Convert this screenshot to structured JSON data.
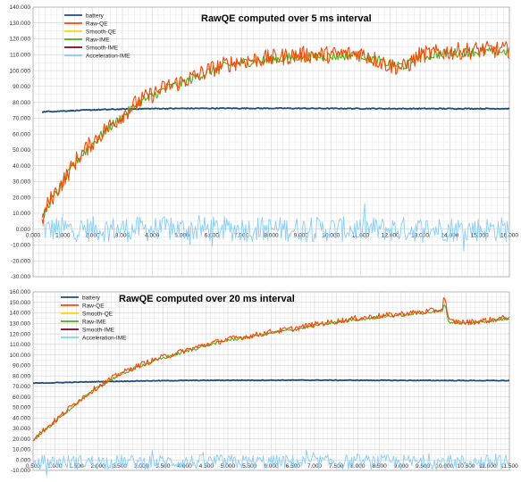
{
  "chart_data": [
    {
      "type": "line",
      "title": "RawQE computed over 5 ms interval",
      "xlabel": "",
      "ylabel": "",
      "xlim": [
        0,
        16000
      ],
      "ylim": [
        -30000,
        140000
      ],
      "x_ticks": [
        "0.000",
        "1.000",
        "2.000",
        "3.000",
        "4.000",
        "5.000",
        "6.000",
        "7.000",
        "8.000",
        "9.000",
        "10.000",
        "11.000",
        "12.000",
        "13.000",
        "14.000",
        "15.000",
        "16.000"
      ],
      "y_ticks": [
        "140.000",
        "130.000",
        "120.000",
        "110.000",
        "100.000",
        "90.000",
        "80.000",
        "70.000",
        "60.000",
        "50.000",
        "40.000",
        "30.000",
        "20.000",
        "10.000",
        "0.000",
        "-10.000",
        "-20.000",
        "-30.000"
      ],
      "grid": true,
      "legend_position": "top-left",
      "legend": [
        {
          "name": "battery",
          "color": "#1f4e79"
        },
        {
          "name": "Raw-QE",
          "color": "#ff4500"
        },
        {
          "name": "Smooth-QE",
          "color": "#ffd700"
        },
        {
          "name": "Raw-IME",
          "color": "#4caf1e"
        },
        {
          "name": "Smooth-IME",
          "color": "#800020"
        },
        {
          "name": "Acceleration-IME",
          "color": "#87cefa"
        }
      ],
      "series": [
        {
          "name": "battery",
          "color": "#1f4e79",
          "x": [
            300,
            1000,
            2000,
            3000,
            4000,
            6000,
            8000,
            10000,
            12000,
            14000,
            16000
          ],
          "y": [
            74000,
            74500,
            75200,
            75700,
            76000,
            76200,
            76200,
            76100,
            76000,
            76000,
            76000
          ]
        },
        {
          "name": "Raw-QE",
          "color": "#ff4500",
          "x": [
            300,
            500,
            1000,
            1500,
            2000,
            2500,
            3000,
            3500,
            4000,
            4500,
            5000,
            5500,
            6000,
            6500,
            7000,
            8000,
            9000,
            10000,
            11000,
            12000,
            12500,
            13000,
            14000,
            15000,
            16000
          ],
          "y": [
            5000,
            16000,
            30000,
            45000,
            55000,
            64000,
            72000,
            80000,
            85000,
            90000,
            93000,
            97000,
            101000,
            104000,
            106000,
            108000,
            110000,
            110000,
            111000,
            103000,
            102000,
            110000,
            112000,
            113000,
            113000
          ]
        },
        {
          "name": "Raw-IME",
          "color": "#4caf1e",
          "x": [
            300,
            500,
            1000,
            1500,
            2000,
            2500,
            3000,
            3500,
            4000,
            4500,
            5000,
            5500,
            6000,
            6500,
            7000,
            8000,
            9000,
            10000,
            11000,
            12000,
            12500,
            13000,
            14000,
            15000,
            16000
          ],
          "y": [
            5000,
            15000,
            29000,
            44000,
            54000,
            63000,
            71000,
            79000,
            84000,
            89000,
            92000,
            96000,
            100000,
            103000,
            105000,
            107000,
            109000,
            109000,
            110000,
            104000,
            103000,
            109000,
            111000,
            112000,
            112000
          ]
        },
        {
          "name": "Acceleration-IME",
          "color": "#87cefa",
          "x": [
            300,
            1000,
            2000,
            3000,
            4000,
            5000,
            6000,
            7000,
            8000,
            9000,
            10000,
            11000,
            12000,
            13000,
            14000,
            15000,
            16000
          ],
          "y": [
            0,
            0,
            0,
            0,
            0,
            0,
            0,
            0,
            0,
            0,
            0,
            0,
            0,
            0,
            0,
            0,
            0
          ]
        }
      ]
    },
    {
      "type": "line",
      "title": "RawQE computed over 20 ms interval",
      "xlabel": "",
      "ylabel": "",
      "xlim": [
        500,
        11500
      ],
      "ylim": [
        -10000,
        160000
      ],
      "x_ticks": [
        "0.500",
        "1.000",
        "1.500",
        "2.000",
        "2.500",
        "3.000",
        "3.500",
        "4.000",
        "4.500",
        "5.000",
        "5.500",
        "6.000",
        "6.500",
        "7.000",
        "7.500",
        "8.000",
        "8.500",
        "9.000",
        "9.500",
        "10.000",
        "10.500",
        "11.000",
        "11.500"
      ],
      "y_ticks": [
        "160.000",
        "150.000",
        "140.000",
        "130.000",
        "120.000",
        "110.000",
        "100.000",
        "90.000",
        "80.000",
        "70.000",
        "60.000",
        "50.000",
        "40.000",
        "30.000",
        "20.000",
        "10.000",
        "0.000",
        "-10.000"
      ],
      "grid": true,
      "legend_position": "top-left",
      "legend": [
        {
          "name": "battery",
          "color": "#1f4e79"
        },
        {
          "name": "Raw-QE",
          "color": "#ff4500"
        },
        {
          "name": "Smooth-QE",
          "color": "#ffd700"
        },
        {
          "name": "Raw-IME",
          "color": "#4caf1e"
        },
        {
          "name": "Smooth-IME",
          "color": "#800020"
        },
        {
          "name": "Acceleration-IME",
          "color": "#87cefa"
        }
      ],
      "series": [
        {
          "name": "battery",
          "color": "#1f4e79",
          "x": [
            500,
            1000,
            2000,
            3000,
            4000,
            5000,
            6000,
            7000,
            8000,
            9000,
            10000,
            11000,
            11500
          ],
          "y": [
            73000,
            73500,
            74500,
            75200,
            75600,
            75800,
            75900,
            75900,
            75800,
            75700,
            75600,
            75500,
            75500
          ]
        },
        {
          "name": "Raw-QE",
          "color": "#ff4500",
          "x": [
            500,
            1000,
            1500,
            2000,
            2500,
            3000,
            3500,
            4000,
            4500,
            5000,
            5500,
            6000,
            6500,
            7000,
            7500,
            8000,
            8500,
            9000,
            9500,
            9950,
            10000,
            10100,
            10500,
            11000,
            11500
          ],
          "y": [
            20000,
            37000,
            55000,
            70000,
            82000,
            91000,
            98000,
            104000,
            110000,
            115000,
            118000,
            122000,
            125000,
            129000,
            132000,
            135000,
            137000,
            139000,
            141000,
            143000,
            158000,
            132000,
            131000,
            133000,
            136000
          ]
        },
        {
          "name": "Raw-IME",
          "color": "#4caf1e",
          "x": [
            500,
            1000,
            1500,
            2000,
            2500,
            3000,
            3500,
            4000,
            4500,
            5000,
            5500,
            6000,
            6500,
            7000,
            7500,
            8000,
            8500,
            9000,
            9500,
            9950,
            10000,
            10100,
            10500,
            11000,
            11500
          ],
          "y": [
            19000,
            36000,
            54000,
            69000,
            81000,
            90000,
            97000,
            103000,
            109000,
            114000,
            117000,
            121000,
            124000,
            128000,
            131000,
            134000,
            136000,
            138000,
            140000,
            142000,
            150000,
            131000,
            130000,
            132000,
            135000
          ]
        },
        {
          "name": "Acceleration-IME",
          "color": "#87cefa",
          "x": [
            500,
            1000,
            2000,
            3000,
            4000,
            5000,
            6000,
            7000,
            8000,
            9000,
            10000,
            11000,
            11500
          ],
          "y": [
            -2000,
            -2000,
            -2000,
            -2000,
            -2000,
            -2000,
            -2000,
            -2000,
            -2000,
            -2000,
            -2000,
            -2000,
            -2000
          ]
        }
      ]
    }
  ]
}
